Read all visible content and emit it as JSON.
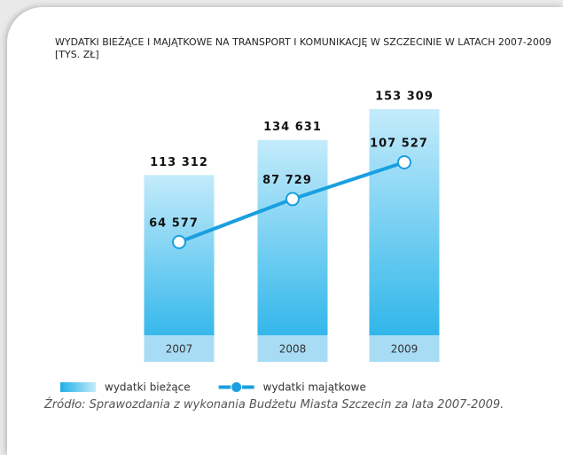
{
  "chart_data": {
    "type": "bar",
    "title": "WYDATKI BIEŻĄCE I MAJĄTKOWE NA TRANSPORT I KOMUNIKACJĘ W SZCZECINIE W LATACH 2007-2009 [TYS. ZŁ]",
    "categories": [
      "2007",
      "2008",
      "2009"
    ],
    "series": [
      {
        "name": "wydatki bieżące",
        "type": "bar",
        "color": "#1fb0e8",
        "values": [
          113312,
          134631,
          153309
        ],
        "value_labels": [
          "113 312",
          "134 631",
          "153 309"
        ]
      },
      {
        "name": "wydatki majątkowe",
        "type": "line",
        "color": "#1a9fe0",
        "values": [
          64577,
          87729,
          107527
        ],
        "value_labels": [
          "64 577",
          "87 729",
          "107 527"
        ]
      }
    ],
    "source": "Źródło: Sprawozdania z wykonania Budżetu Miasta Szczecin za lata 2007-2009."
  }
}
